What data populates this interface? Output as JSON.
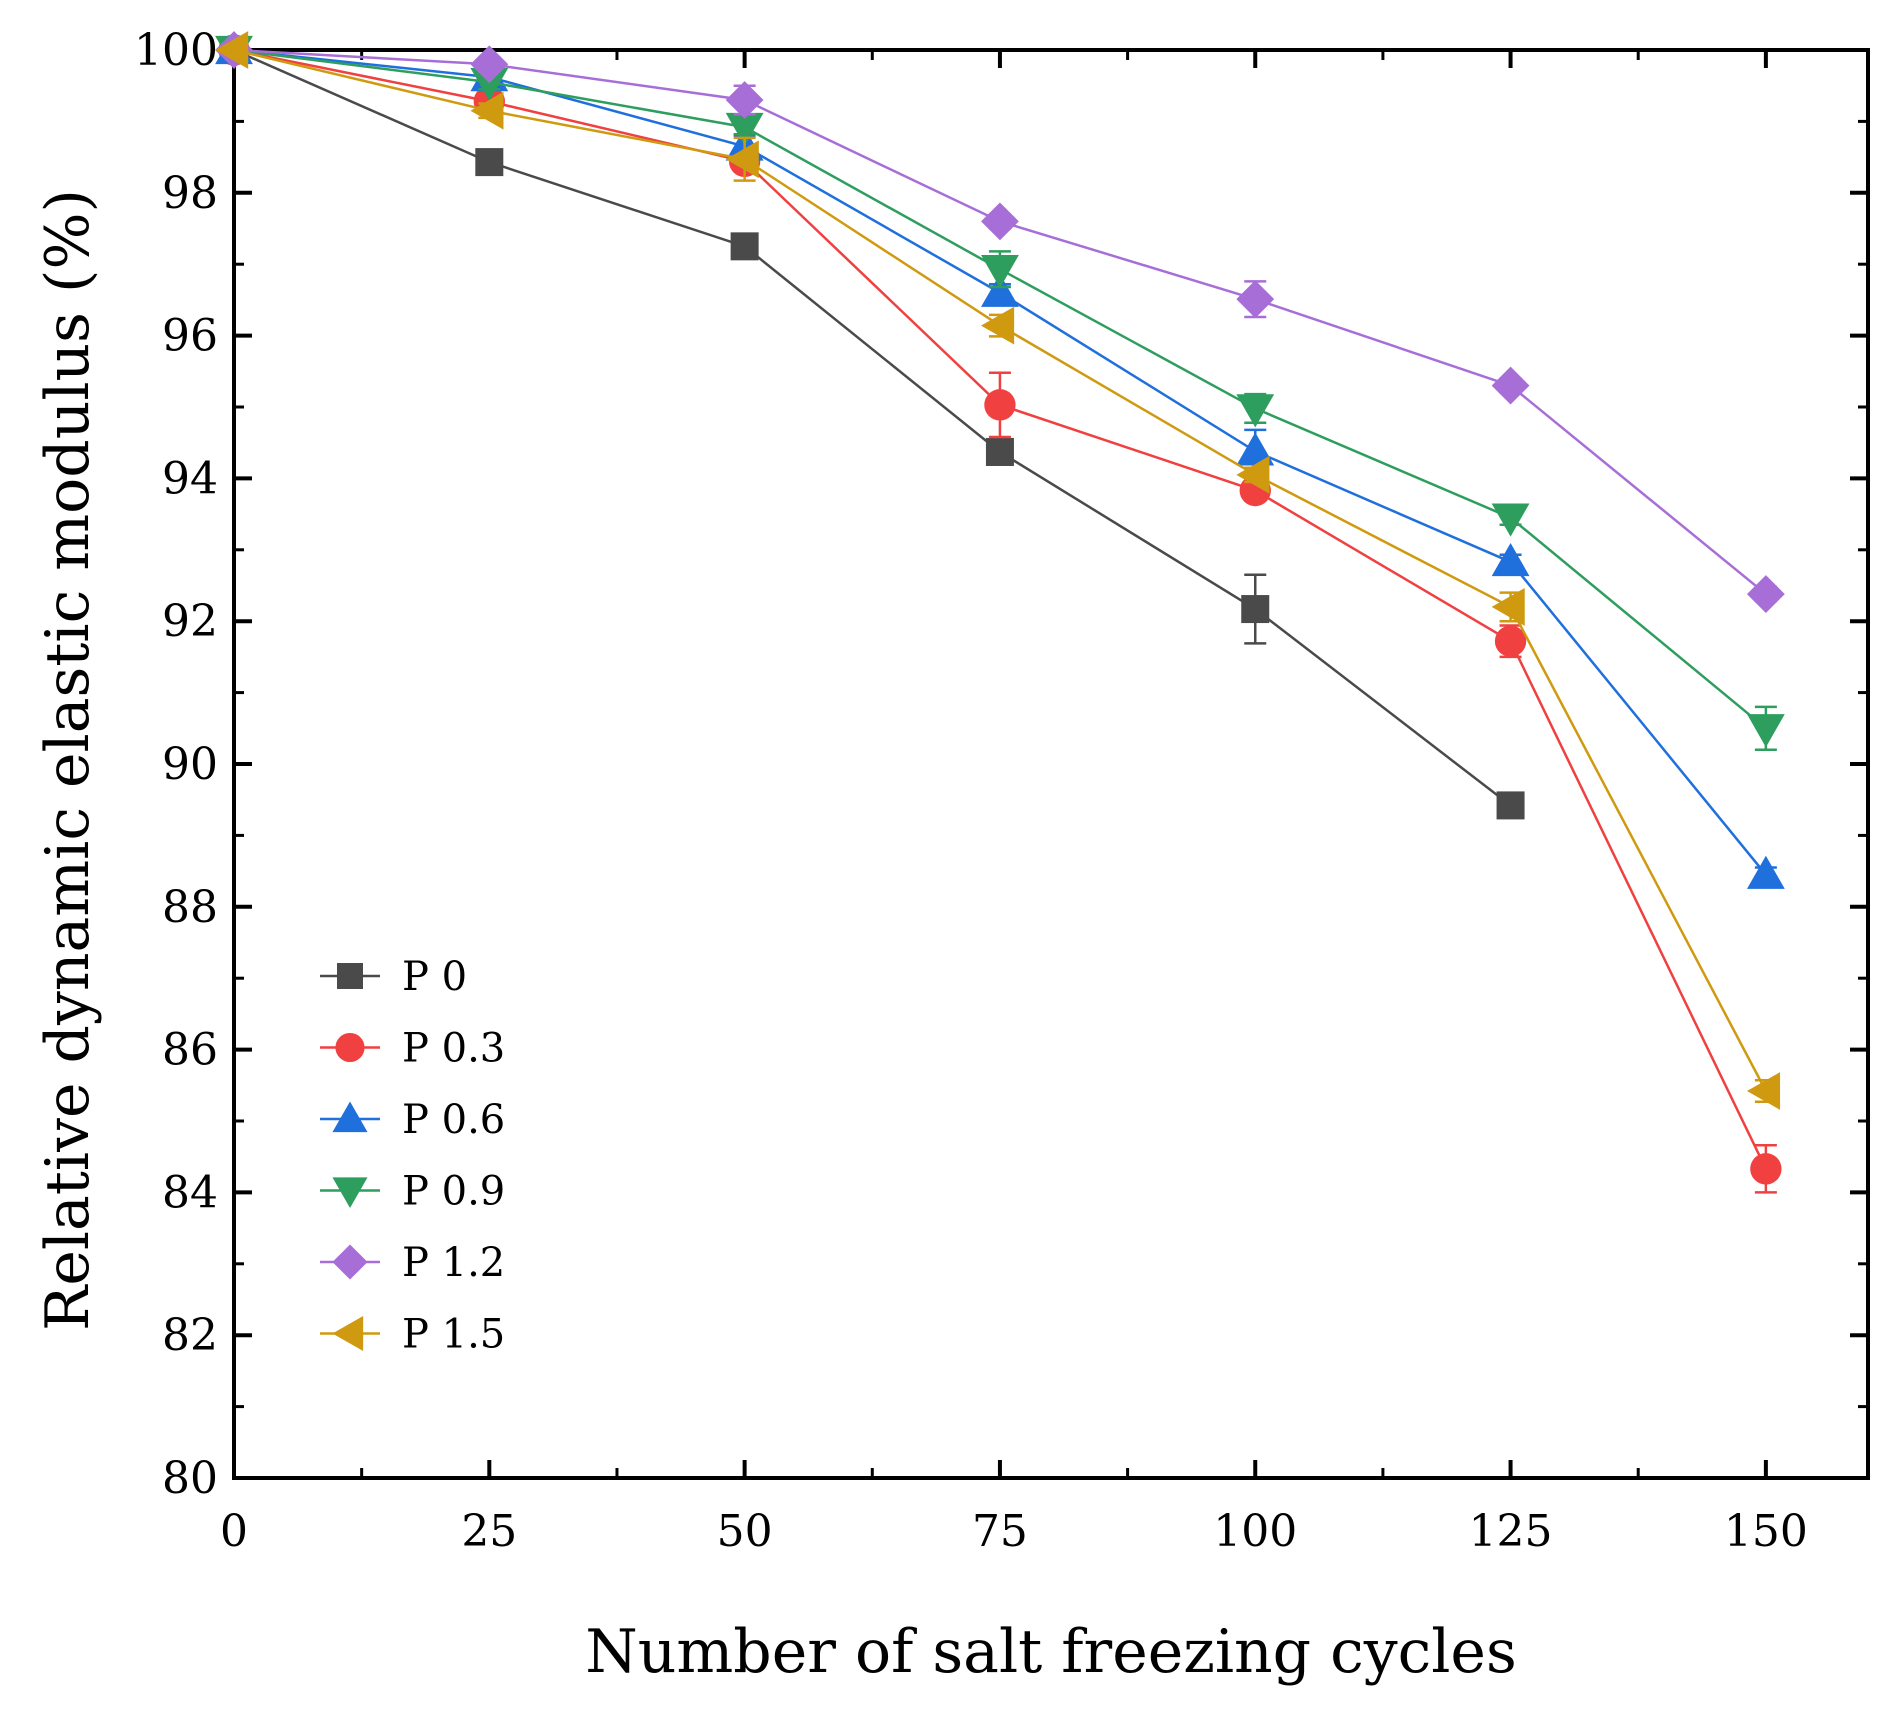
{
  "chart_data": {
    "type": "line",
    "title": "",
    "xlabel": "Number of salt freezing cycles",
    "ylabel": "Relative dynamic elastic modulus (%)",
    "xlim": [
      0,
      160
    ],
    "ylim": [
      80,
      100
    ],
    "xticks": [
      0,
      25,
      50,
      75,
      100,
      125,
      150
    ],
    "yticks": [
      80,
      82,
      84,
      86,
      88,
      90,
      92,
      94,
      96,
      98,
      100
    ],
    "grid": false,
    "legend_position": "lower-left",
    "series": [
      {
        "name": "P 0",
        "color": "#4a4a4a",
        "marker": "square",
        "x": [
          0,
          25,
          50,
          75,
          100,
          125
        ],
        "values": [
          100,
          98.43,
          97.25,
          94.37,
          92.17,
          89.42
        ],
        "errors": [
          0,
          0.1,
          0.1,
          0.15,
          0.48,
          0.1
        ]
      },
      {
        "name": "P 0.3",
        "color": "#f04040",
        "marker": "circle",
        "x": [
          0,
          25,
          50,
          75,
          100,
          125,
          150
        ],
        "values": [
          100,
          99.28,
          98.44,
          95.03,
          93.83,
          91.72,
          84.33
        ],
        "errors": [
          0,
          0.1,
          0.1,
          0.45,
          0.1,
          0.22,
          0.33
        ]
      },
      {
        "name": "P 0.6",
        "color": "#1f6fdc",
        "marker": "triangle-up",
        "x": [
          0,
          25,
          50,
          75,
          100,
          125,
          150
        ],
        "values": [
          100,
          99.62,
          98.65,
          96.6,
          94.38,
          92.83,
          88.45
        ],
        "errors": [
          0,
          0.1,
          0.15,
          0.12,
          0.3,
          0.1,
          0.1
        ]
      },
      {
        "name": "P 0.9",
        "color": "#2e9e5e",
        "marker": "triangle-down",
        "x": [
          0,
          25,
          50,
          75,
          100,
          125,
          150
        ],
        "values": [
          100,
          99.55,
          98.92,
          96.93,
          94.98,
          93.45,
          90.5
        ],
        "errors": [
          0,
          0.1,
          0.1,
          0.25,
          0.2,
          0.1,
          0.3
        ]
      },
      {
        "name": "P 1.2",
        "color": "#a86ed8",
        "marker": "diamond",
        "x": [
          0,
          25,
          50,
          75,
          100,
          125,
          150
        ],
        "values": [
          100,
          99.8,
          99.3,
          97.6,
          96.51,
          95.3,
          92.38
        ],
        "errors": [
          0,
          0.1,
          0.2,
          0.1,
          0.25,
          0.1,
          0.1
        ]
      },
      {
        "name": "P 1.5",
        "color": "#d09a10",
        "marker": "triangle-left",
        "x": [
          0,
          25,
          50,
          75,
          100,
          125,
          150
        ],
        "values": [
          100,
          99.15,
          98.47,
          96.14,
          94.05,
          92.2,
          85.42
        ],
        "errors": [
          0,
          0.1,
          0.3,
          0.15,
          0.1,
          0.2,
          0.15
        ]
      }
    ]
  }
}
